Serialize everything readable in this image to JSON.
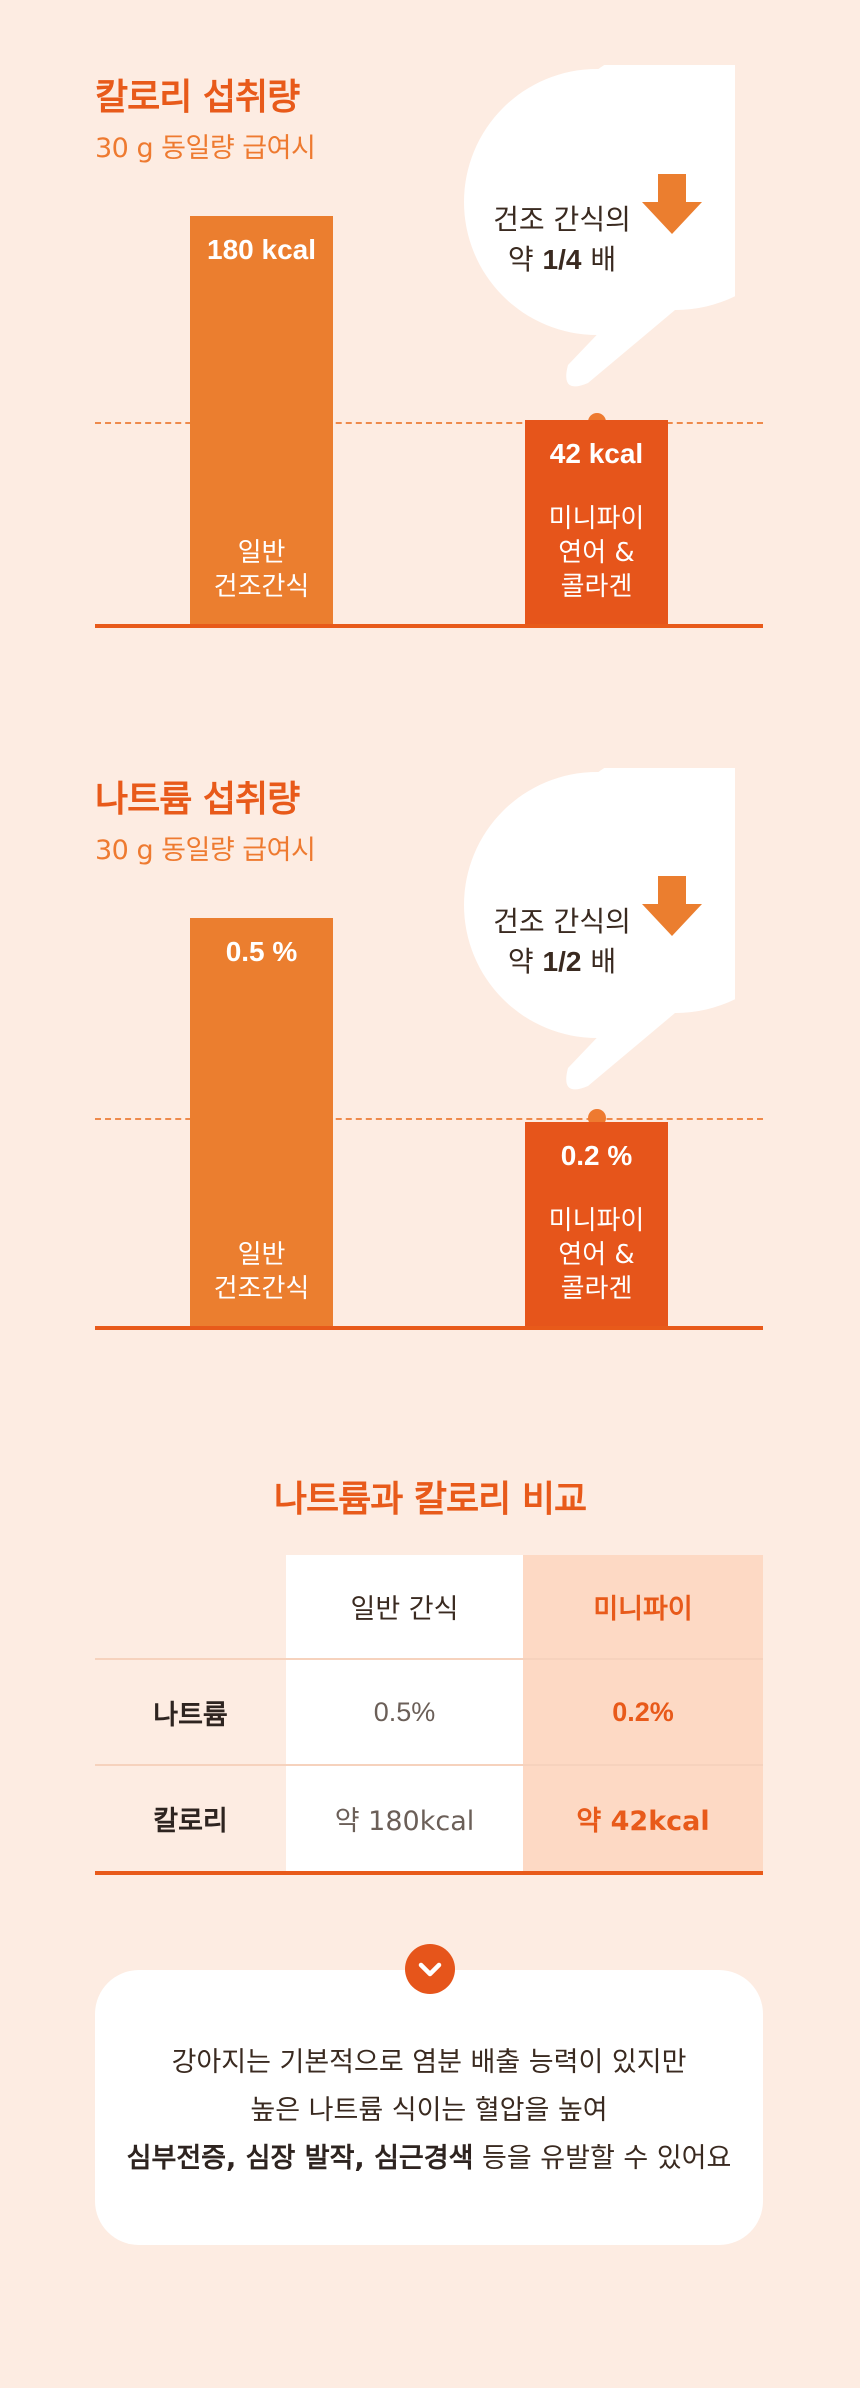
{
  "colors": {
    "background": "#fdece2",
    "accent": "#e85a1a",
    "bar_regular": "#eb7e2f",
    "bar_minipie": "#e6551b",
    "highlight_column": "#fdd9c4"
  },
  "chart_data": [
    {
      "type": "bar",
      "title": "칼로리 섭취량",
      "subtitle": "30 g 동일량 급여시",
      "categories": [
        "일반\n건조간식",
        "미니파이\n연어 &\n콜라겐"
      ],
      "values": [
        180,
        42
      ],
      "value_labels": [
        "180 kcal",
        "42 kcal"
      ],
      "unit": "kcal",
      "callout": {
        "line1": "건조 간식의",
        "prefix": "약 ",
        "ratio": "1/4",
        "suffix": " 배",
        "icon": "arrow-down-icon"
      }
    },
    {
      "type": "bar",
      "title": "나트륨 섭취량",
      "subtitle": "30 g 동일량 급여시",
      "categories": [
        "일반\n건조간식",
        "미니파이\n연어 &\n콜라겐"
      ],
      "values": [
        0.5,
        0.2
      ],
      "value_labels": [
        "0.5 %",
        "0.2 %"
      ],
      "unit": "%",
      "callout": {
        "line1": "건조 간식의",
        "prefix": "약 ",
        "ratio": "1/2",
        "suffix": " 배",
        "icon": "arrow-down-icon"
      }
    }
  ],
  "comparison": {
    "title": "나트륨과 칼로리 비교",
    "columns": [
      "일반 간식",
      "미니파이"
    ],
    "rows": [
      {
        "label": "나트륨",
        "regular": "0.5%",
        "minipie": "0.2%"
      },
      {
        "label": "칼로리",
        "regular": "약 180kcal",
        "minipie": "약 42kcal"
      }
    ]
  },
  "note": {
    "icon": "chevron-down-icon",
    "line1": "강아지는 기본적으로 염분 배출 능력이 있지만",
    "line2": "높은 나트륨 식이는 혈압을 높여",
    "line3_bold": "심부전증, 심장 발작, 심근경색",
    "line3_rest": " 등을 유발할 수 있어요"
  }
}
